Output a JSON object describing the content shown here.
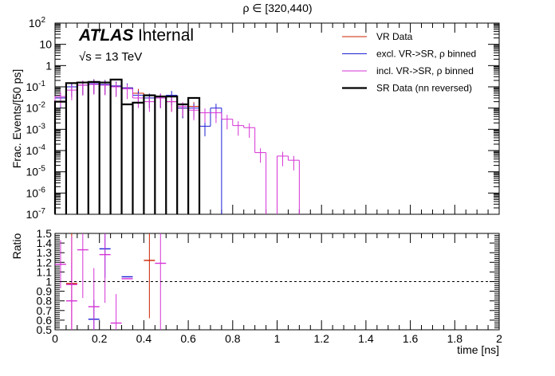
{
  "chart_data": [
    {
      "type": "line",
      "title": "ρ ∈ [320,440)",
      "xlabel": "time [ns]",
      "ylabel": "Frac. Events/[50 ps]",
      "xlim": [
        0,
        2
      ],
      "ylim": [
        1e-07,
        100
      ],
      "yscale": "log",
      "grid": false,
      "legend_position": "top-right",
      "annotations": {
        "atlas": "ATLAS",
        "internal": "Internal",
        "energy": "√s = 13 TeV"
      },
      "bin_edges": [
        0,
        0.05,
        0.1,
        0.15,
        0.2,
        0.25,
        0.3,
        0.35,
        0.4,
        0.45,
        0.5,
        0.55,
        0.6,
        0.65,
        0.7,
        0.75,
        0.8,
        0.85,
        0.9,
        0.95,
        1.0,
        1.05,
        1.1,
        1.15,
        1.2
      ],
      "series": [
        {
          "name": "VR Data",
          "color": "#cc2200",
          "style": "errorbar",
          "values": [
            0.03,
            0.1,
            0.12,
            0.14,
            0.13,
            0.11,
            0.09,
            0.05,
            0.03,
            0.03,
            0.02,
            0.01,
            0.012,
            null,
            null,
            null,
            null,
            null,
            null,
            null,
            null,
            null,
            null,
            null
          ]
        },
        {
          "name": "excl. VR->SR, ρ binned",
          "color": "#1f1fd6",
          "style": "errorbar",
          "values": [
            0.03,
            0.1,
            0.12,
            0.14,
            0.13,
            0.11,
            0.09,
            0.04,
            0.03,
            0.03,
            0.04,
            0.01,
            0.01,
            0.0014,
            0.01,
            null,
            null,
            null,
            null,
            null,
            null,
            null,
            null,
            null
          ]
        },
        {
          "name": "incl. VR->SR, ρ binned",
          "color": "#d633d6",
          "style": "errorbar",
          "values": [
            0.035,
            0.07,
            0.12,
            0.13,
            0.12,
            0.1,
            0.08,
            0.03,
            0.02,
            0.03,
            0.02,
            0.012,
            0.008,
            0.006,
            0.006,
            0.003,
            0.0015,
            0.0012,
            8e-05,
            null,
            5.5e-05,
            3.5e-05,
            null,
            null
          ]
        },
        {
          "name": "SR Data (nn reversed)",
          "color": "#000000",
          "style": "hist",
          "values": [
            0.02,
            0.15,
            0.16,
            0.17,
            0.16,
            0.22,
            0.015,
            0.018,
            0.04,
            0.035,
            0.035,
            0.015,
            0.03,
            null,
            null,
            null,
            null,
            null,
            null,
            null,
            null,
            null,
            null,
            null
          ]
        }
      ]
    },
    {
      "type": "scatter",
      "xlabel": "time [ns]",
      "ylabel": "Ratio",
      "xlim": [
        0,
        2
      ],
      "ylim": [
        0.5,
        1.5
      ],
      "reference_line": 1,
      "series": [
        {
          "name": "VR Data",
          "color": "#cc2200",
          "points": [
            {
              "x": 0.075,
              "y": 0.98,
              "err": 0.6
            },
            {
              "x": 0.425,
              "y": 1.22,
              "err": 0.6
            }
          ]
        },
        {
          "name": "excl. VR->SR, ρ binned",
          "color": "#1f1fd6",
          "points": [
            {
              "x": 0.225,
              "y": 1.34,
              "err": 0.3
            },
            {
              "x": 0.175,
              "y": 0.61,
              "err": 0.2
            },
            {
              "x": 0.325,
              "y": 1.05,
              "err": 0.0
            }
          ]
        },
        {
          "name": "incl. VR->SR, ρ binned",
          "color": "#d633d6",
          "points": [
            {
              "x": 0.025,
              "y": 1.18,
              "err": 0.25
            },
            {
              "x": 0.075,
              "y": 0.97,
              "err": 0.5
            },
            {
              "x": 0.075,
              "y": 0.8,
              "err": 0.4
            },
            {
              "x": 0.125,
              "y": 1.33,
              "err": 0.5
            },
            {
              "x": 0.175,
              "y": 0.74,
              "err": 0.4
            },
            {
              "x": 0.225,
              "y": 1.28,
              "err": 0.5
            },
            {
              "x": 0.275,
              "y": 0.57,
              "err": 0.3
            },
            {
              "x": 0.325,
              "y": 1.03,
              "err": 0.0
            },
            {
              "x": 0.475,
              "y": 1.19,
              "err": 0.7
            }
          ]
        }
      ]
    }
  ],
  "ratio_ylabel": "Ratio"
}
